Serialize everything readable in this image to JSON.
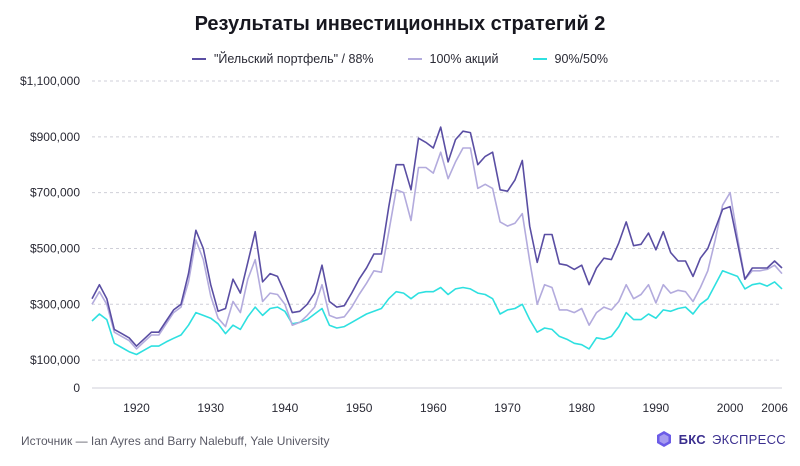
{
  "header": {
    "title": "Результаты инвестиционных стратегий 2"
  },
  "footer": {
    "source": "Источник — Ian Ayres and Barry Nalebuff, Yale University"
  },
  "brand": {
    "name_bold": "БКС",
    "name_regular": "ЭКСПРЕСС",
    "logo_icon": "bks-logo-icon",
    "color": "#3b2f8f"
  },
  "chart_data": {
    "type": "line",
    "title": "Результаты инвестиционных стратегий 2",
    "xlabel": "",
    "ylabel": "",
    "xlim": [
      1914,
      2007
    ],
    "ylim": [
      0,
      1100000
    ],
    "yticks": [
      0,
      100000,
      300000,
      500000,
      700000,
      900000,
      1100000
    ],
    "ytick_labels": [
      "0",
      "$100,000",
      "$300,000",
      "$500,000",
      "$700,000",
      "$900,000",
      "$1,100,000"
    ],
    "xticks": [
      1920,
      1930,
      1940,
      1950,
      1960,
      1970,
      1980,
      1990,
      2000,
      2006
    ],
    "grid": "horizontal-dashed",
    "legend_position": "top-center",
    "x": [
      1914,
      1915,
      1916,
      1917,
      1918,
      1919,
      1920,
      1921,
      1922,
      1923,
      1924,
      1925,
      1926,
      1927,
      1928,
      1929,
      1930,
      1931,
      1932,
      1933,
      1934,
      1935,
      1936,
      1937,
      1938,
      1939,
      1940,
      1941,
      1942,
      1943,
      1944,
      1945,
      1946,
      1947,
      1948,
      1949,
      1950,
      1951,
      1952,
      1953,
      1954,
      1955,
      1956,
      1957,
      1958,
      1959,
      1960,
      1961,
      1962,
      1963,
      1964,
      1965,
      1966,
      1967,
      1968,
      1969,
      1970,
      1971,
      1972,
      1973,
      1974,
      1975,
      1976,
      1977,
      1978,
      1979,
      1980,
      1981,
      1982,
      1983,
      1984,
      1985,
      1986,
      1987,
      1988,
      1989,
      1990,
      1991,
      1992,
      1993,
      1994,
      1995,
      1996,
      1997,
      1998,
      1999,
      2000,
      2001,
      2002,
      2003,
      2004,
      2005,
      2006,
      2007
    ],
    "series": [
      {
        "name": "\"Йельский портфель\" / 88%",
        "color": "#5a4ea3",
        "values": [
          320000,
          370000,
          320000,
          210000,
          195000,
          180000,
          150000,
          175000,
          200000,
          200000,
          240000,
          280000,
          300000,
          410000,
          565000,
          500000,
          370000,
          275000,
          285000,
          390000,
          340000,
          450000,
          560000,
          380000,
          410000,
          400000,
          340000,
          270000,
          275000,
          300000,
          340000,
          440000,
          310000,
          290000,
          295000,
          340000,
          390000,
          430000,
          480000,
          480000,
          650000,
          800000,
          800000,
          710000,
          895000,
          880000,
          860000,
          935000,
          810000,
          890000,
          920000,
          915000,
          800000,
          830000,
          845000,
          710000,
          705000,
          745000,
          815000,
          580000,
          450000,
          550000,
          550000,
          445000,
          440000,
          425000,
          440000,
          370000,
          430000,
          465000,
          460000,
          520000,
          595000,
          510000,
          515000,
          555000,
          495000,
          560000,
          485000,
          455000,
          455000,
          400000,
          465000,
          500000,
          570000,
          640000,
          650000,
          520000,
          390000,
          430000,
          430000,
          430000,
          455000,
          430000
        ]
      },
      {
        "name": "100% акций",
        "color": "#b3abdd",
        "values": [
          300000,
          345000,
          300000,
          200000,
          185000,
          170000,
          140000,
          165000,
          190000,
          190000,
          230000,
          270000,
          290000,
          380000,
          530000,
          460000,
          330000,
          250000,
          220000,
          310000,
          270000,
          390000,
          460000,
          310000,
          340000,
          335000,
          300000,
          225000,
          235000,
          260000,
          290000,
          370000,
          260000,
          250000,
          255000,
          290000,
          335000,
          375000,
          420000,
          415000,
          560000,
          710000,
          700000,
          600000,
          790000,
          790000,
          770000,
          845000,
          750000,
          810000,
          860000,
          860000,
          715000,
          730000,
          715000,
          595000,
          580000,
          590000,
          625000,
          455000,
          300000,
          370000,
          360000,
          280000,
          280000,
          270000,
          285000,
          225000,
          270000,
          290000,
          280000,
          310000,
          370000,
          320000,
          335000,
          370000,
          305000,
          370000,
          340000,
          350000,
          345000,
          310000,
          360000,
          420000,
          530000,
          655000,
          700000,
          540000,
          390000,
          420000,
          420000,
          425000,
          440000,
          410000
        ]
      },
      {
        "name": "90%/50%",
        "color": "#2ee0e0",
        "values": [
          240000,
          265000,
          245000,
          160000,
          145000,
          130000,
          120000,
          135000,
          150000,
          150000,
          165000,
          178000,
          190000,
          225000,
          270000,
          260000,
          250000,
          230000,
          195000,
          225000,
          210000,
          255000,
          290000,
          260000,
          285000,
          290000,
          275000,
          230000,
          235000,
          245000,
          265000,
          285000,
          225000,
          215000,
          220000,
          235000,
          250000,
          265000,
          275000,
          285000,
          320000,
          345000,
          340000,
          320000,
          340000,
          345000,
          345000,
          360000,
          335000,
          355000,
          360000,
          355000,
          340000,
          335000,
          320000,
          265000,
          280000,
          285000,
          300000,
          245000,
          200000,
          215000,
          210000,
          185000,
          175000,
          160000,
          155000,
          140000,
          180000,
          175000,
          185000,
          220000,
          270000,
          245000,
          245000,
          265000,
          250000,
          280000,
          275000,
          285000,
          290000,
          265000,
          300000,
          320000,
          370000,
          420000,
          410000,
          400000,
          355000,
          370000,
          375000,
          365000,
          380000,
          355000
        ]
      }
    ]
  }
}
